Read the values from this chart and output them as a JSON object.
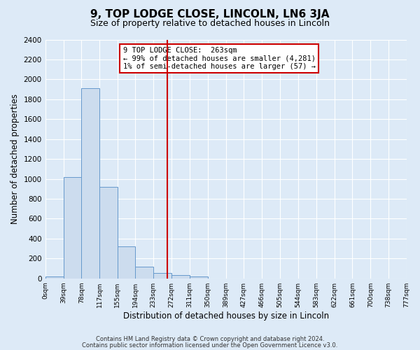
{
  "title": "9, TOP LODGE CLOSE, LINCOLN, LN6 3JA",
  "subtitle": "Size of property relative to detached houses in Lincoln",
  "xlabel": "Distribution of detached houses by size in Lincoln",
  "ylabel": "Number of detached properties",
  "bin_edges": [
    0,
    39,
    78,
    117,
    155,
    194,
    233,
    272,
    311,
    350,
    389,
    427,
    466,
    505,
    544,
    583,
    622,
    661,
    700,
    738,
    777
  ],
  "bin_labels": [
    "0sqm",
    "39sqm",
    "78sqm",
    "117sqm",
    "155sqm",
    "194sqm",
    "233sqm",
    "272sqm",
    "311sqm",
    "350sqm",
    "389sqm",
    "427sqm",
    "466sqm",
    "505sqm",
    "544sqm",
    "583sqm",
    "622sqm",
    "661sqm",
    "700sqm",
    "738sqm",
    "777sqm"
  ],
  "bar_heights": [
    20,
    1020,
    1910,
    920,
    325,
    115,
    55,
    35,
    20,
    0,
    0,
    0,
    0,
    0,
    0,
    0,
    0,
    0,
    0,
    0
  ],
  "bar_color": "#ccdcee",
  "bar_edge_color": "#6699cc",
  "vline_x": 263,
  "vline_color": "#cc0000",
  "ylim": [
    0,
    2400
  ],
  "yticks": [
    0,
    200,
    400,
    600,
    800,
    1000,
    1200,
    1400,
    1600,
    1800,
    2000,
    2200,
    2400
  ],
  "annotation_box_title": "9 TOP LODGE CLOSE:  263sqm",
  "annotation_line1": "← 99% of detached houses are smaller (4,281)",
  "annotation_line2": "1% of semi-detached houses are larger (57) →",
  "annotation_box_color": "#ffffff",
  "annotation_box_edge_color": "#cc0000",
  "footer1": "Contains HM Land Registry data © Crown copyright and database right 2024.",
  "footer2": "Contains public sector information licensed under the Open Government Licence v3.0.",
  "background_color": "#ddeaf7",
  "plot_background_color": "#ddeaf7",
  "title_fontsize": 11,
  "subtitle_fontsize": 9
}
